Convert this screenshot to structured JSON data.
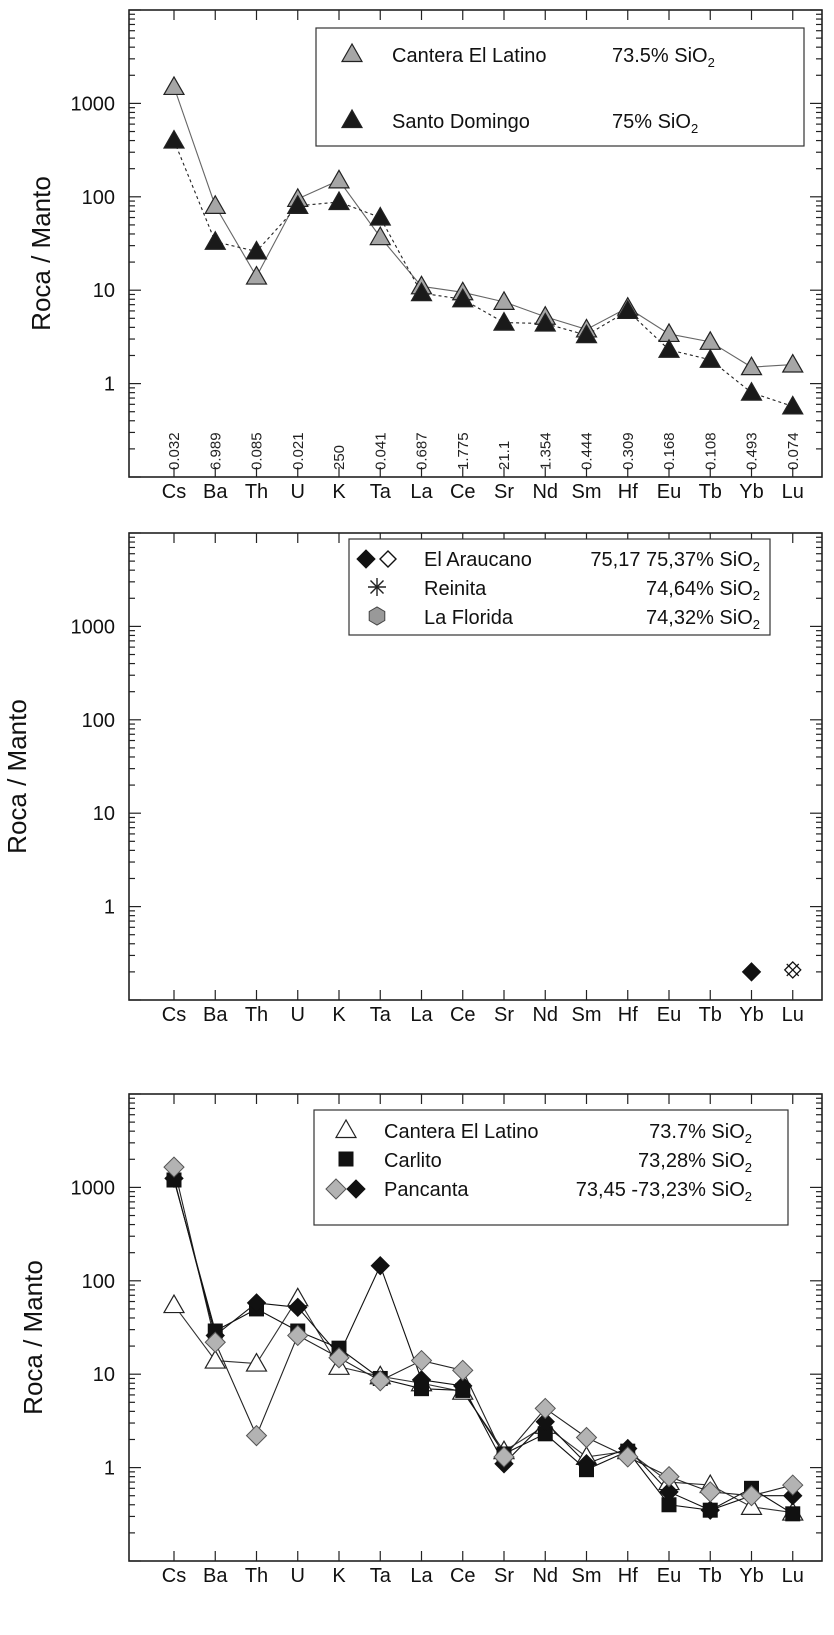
{
  "chart_data": [
    {
      "type": "line",
      "title": "",
      "ylabel": "Roca / Manto",
      "xlabel": "",
      "yscale": "log",
      "ylim": [
        0.1,
        10000
      ],
      "yticks": [
        "1000",
        "100",
        "10",
        "1"
      ],
      "categories": [
        "Cs",
        "Ba",
        "Th",
        "U",
        "K",
        "Ta",
        "La",
        "Ce",
        "Sr",
        "Nd",
        "Sm",
        "Hf",
        "Eu",
        "Tb",
        "Yb",
        "Lu"
      ],
      "normalization_values": [
        "0.032",
        "6.989",
        "0.085",
        "0.021",
        "250",
        "0.041",
        "0.687",
        "1.775",
        "21.1",
        "1.354",
        "0.444",
        "0.309",
        "0.168",
        "0.108",
        "0.493",
        "0.074"
      ],
      "legend_position": "top-right",
      "series": [
        {
          "name": "Cantera El Latino",
          "annotation": "73.5% SiO",
          "annotation_sub": "2",
          "marker": "triangle",
          "fill": "#a6a6a6",
          "line": "solid",
          "values": [
            1500,
            80,
            14,
            95,
            150,
            37,
            11,
            9.5,
            7.5,
            5.2,
            3.8,
            6.5,
            3.4,
            2.8,
            1.5,
            1.6
          ]
        },
        {
          "name": "Santo Domingo",
          "annotation": "75% SiO",
          "annotation_sub": "2",
          "marker": "triangle",
          "fill": "#1a1a1a",
          "line": "dashed",
          "values": [
            400,
            33,
            26,
            80,
            88,
            60,
            9.3,
            8,
            4.5,
            4.4,
            3.3,
            6,
            2.3,
            1.8,
            0.8,
            0.57
          ]
        }
      ]
    },
    {
      "type": "scatter",
      "title": "",
      "ylabel": "Roca / Manto",
      "xlabel": "",
      "yscale": "log",
      "ylim": [
        0.1,
        10000
      ],
      "yticks": [
        "1000",
        "100",
        "10",
        "1"
      ],
      "categories": [
        "Cs",
        "Ba",
        "Th",
        "U",
        "K",
        "Ta",
        "La",
        "Ce",
        "Sr",
        "Nd",
        "Sm",
        "Hf",
        "Eu",
        "Tb",
        "Yb",
        "Lu"
      ],
      "legend_position": "top-right",
      "series": [
        {
          "name": "El Araucano",
          "annotation": "75,17 75,37% SiO",
          "annotation_sub": "2",
          "marker": "diamond-pair",
          "points": [
            [
              "Yb",
              0.2
            ]
          ]
        },
        {
          "name": "Reinita",
          "annotation": "74,64% SiO",
          "annotation_sub": "2",
          "marker": "asterisk",
          "points": [
            [
              "Lu",
              0.21
            ]
          ]
        },
        {
          "name": "La Florida",
          "annotation": "74,32% SiO",
          "annotation_sub": "2",
          "marker": "hexagon",
          "points": []
        }
      ]
    },
    {
      "type": "line",
      "title": "",
      "ylabel": "Roca / Manto",
      "xlabel": "",
      "yscale": "log",
      "ylim": [
        0.1,
        10000
      ],
      "yticks": [
        "1000",
        "100",
        "10",
        "1"
      ],
      "categories": [
        "Cs",
        "Ba",
        "Th",
        "U",
        "K",
        "Ta",
        "La",
        "Ce",
        "Sr",
        "Nd",
        "Sm",
        "Hf",
        "Eu",
        "Tb",
        "Yb",
        "Lu"
      ],
      "legend_position": "top-right",
      "series": [
        {
          "name": "Cantera El Latino",
          "annotation": "73.7% SiO",
          "annotation_sub": "2",
          "marker": "triangle-open",
          "values": [
            55,
            14,
            13,
            65,
            12,
            9.5,
            8,
            6.5,
            1.5,
            2.8,
            1.3,
            1.5,
            0.7,
            0.65,
            0.38,
            0.33
          ]
        },
        {
          "name": "Carlito",
          "annotation": "73,28% SiO",
          "annotation_sub": "2",
          "marker": "square",
          "values": [
            1200,
            29,
            50,
            29,
            19,
            9,
            7,
            6.7,
            1.4,
            2.3,
            0.95,
            1.5,
            0.4,
            0.35,
            0.6,
            0.32
          ]
        },
        {
          "name": "Pancanta",
          "annotation": "73,45 -73,23% SiO",
          "annotation_sub": "2",
          "marker": "diamond-pair",
          "series_values": [
            [
              1650,
              22,
              2.2,
              26,
              15,
              8.5,
              14,
              11,
              1.3,
              4.3,
              2.1,
              1.3,
              0.8,
              0.55,
              0.5,
              0.65
            ],
            [
              1250,
              26,
              58,
              52,
              16,
              145,
              8.7,
              7.5,
              1.1,
              3.1,
              1.1,
              1.6,
              0.55,
              0.35,
              0.5,
              0.5
            ]
          ]
        }
      ]
    }
  ]
}
